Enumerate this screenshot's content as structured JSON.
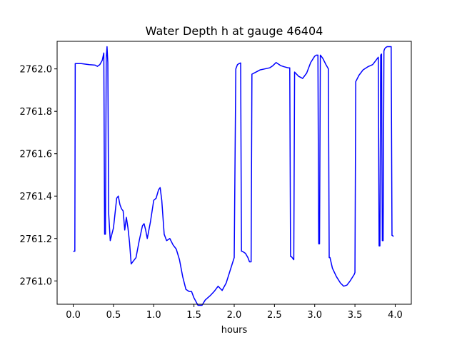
{
  "chart_data": {
    "type": "line",
    "title": "Water Depth h at gauge 46404",
    "xlabel": "hours",
    "ylabel": "",
    "xlim": [
      -0.2,
      4.2
    ],
    "ylim": [
      2760.89,
      2762.13
    ],
    "xticks": [
      0.0,
      0.5,
      1.0,
      1.5,
      2.0,
      2.5,
      3.0,
      3.5,
      4.0
    ],
    "xtick_labels": [
      "0.0",
      "0.5",
      "1.0",
      "1.5",
      "2.0",
      "2.5",
      "3.0",
      "3.5",
      "4.0"
    ],
    "yticks": [
      2761.0,
      2761.2,
      2761.4,
      2761.6,
      2761.8,
      2762.0
    ],
    "ytick_labels": [
      "2761.0",
      "2761.2",
      "2761.4",
      "2761.6",
      "2761.8",
      "2762.0"
    ],
    "grid": false,
    "series": [
      {
        "color": "#0000ff",
        "x": [
          0.0,
          0.02,
          0.025,
          0.1,
          0.2,
          0.27,
          0.3,
          0.33,
          0.36,
          0.38,
          0.39,
          0.4,
          0.41,
          0.42,
          0.43,
          0.44,
          0.46,
          0.5,
          0.54,
          0.56,
          0.58,
          0.6,
          0.62,
          0.64,
          0.66,
          0.68,
          0.7,
          0.72,
          0.74,
          0.78,
          0.82,
          0.86,
          0.88,
          0.9,
          0.92,
          0.96,
          1.0,
          1.03,
          1.06,
          1.08,
          1.1,
          1.13,
          1.16,
          1.2,
          1.24,
          1.28,
          1.32,
          1.36,
          1.4,
          1.44,
          1.47,
          1.5,
          1.55,
          1.6,
          1.64,
          1.7,
          1.75,
          1.8,
          1.85,
          1.9,
          1.95,
          2.0,
          2.02,
          2.04,
          2.06,
          2.08,
          2.09,
          2.1,
          2.14,
          2.17,
          2.19,
          2.21,
          2.22,
          2.27,
          2.32,
          2.38,
          2.44,
          2.48,
          2.52,
          2.58,
          2.62,
          2.67,
          2.68,
          2.69,
          2.7,
          2.71,
          2.74,
          2.75,
          2.8,
          2.85,
          2.9,
          2.95,
          3.0,
          3.02,
          3.04,
          3.05,
          3.06,
          3.07,
          3.08,
          3.1,
          3.14,
          3.17,
          3.18,
          3.19,
          3.22,
          3.27,
          3.32,
          3.36,
          3.4,
          3.44,
          3.49,
          3.5,
          3.51,
          3.55,
          3.6,
          3.66,
          3.72,
          3.76,
          3.79,
          3.8,
          3.81,
          3.82,
          3.83,
          3.84,
          3.85,
          3.86,
          3.87,
          3.88,
          3.9,
          3.93,
          3.95,
          3.96,
          3.98
        ],
        "y": [
          2761.14,
          2761.14,
          2762.025,
          2762.025,
          2762.02,
          2762.018,
          2762.012,
          2762.02,
          2762.04,
          2762.075,
          2761.22,
          2761.22,
          2762.05,
          2762.105,
          2762.03,
          2761.32,
          2761.19,
          2761.25,
          2761.39,
          2761.4,
          2761.36,
          2761.34,
          2761.33,
          2761.24,
          2761.3,
          2761.25,
          2761.18,
          2761.08,
          2761.09,
          2761.11,
          2761.19,
          2761.26,
          2761.27,
          2761.24,
          2761.2,
          2761.28,
          2761.38,
          2761.39,
          2761.43,
          2761.44,
          2761.38,
          2761.22,
          2761.19,
          2761.2,
          2761.17,
          2761.15,
          2761.1,
          2761.02,
          2760.96,
          2760.95,
          2760.95,
          2760.92,
          2760.885,
          2760.885,
          2760.91,
          2760.93,
          2760.95,
          2760.975,
          2760.955,
          2760.99,
          2761.05,
          2761.11,
          2762.0,
          2762.02,
          2762.025,
          2762.028,
          2761.14,
          2761.14,
          2761.13,
          2761.11,
          2761.09,
          2761.09,
          2761.975,
          2761.985,
          2761.995,
          2762.0,
          2762.005,
          2762.015,
          2762.03,
          2762.015,
          2762.01,
          2762.005,
          2762.005,
          2762.005,
          2761.115,
          2761.115,
          2761.1,
          2761.985,
          2761.965,
          2761.955,
          2761.98,
          2762.03,
          2762.06,
          2762.065,
          2762.065,
          2761.175,
          2761.175,
          2762.065,
          2762.06,
          2762.05,
          2762.02,
          2762.0,
          2761.11,
          2761.11,
          2761.06,
          2761.02,
          2760.99,
          2760.975,
          2760.98,
          2761.0,
          2761.03,
          2761.04,
          2761.94,
          2761.97,
          2761.995,
          2762.01,
          2762.02,
          2762.04,
          2762.055,
          2761.165,
          2761.165,
          2762.065,
          2762.07,
          2761.19,
          2761.19,
          2762.085,
          2762.095,
          2762.1,
          2762.105,
          2762.105,
          2762.105,
          2761.215,
          2761.21
        ]
      }
    ]
  }
}
